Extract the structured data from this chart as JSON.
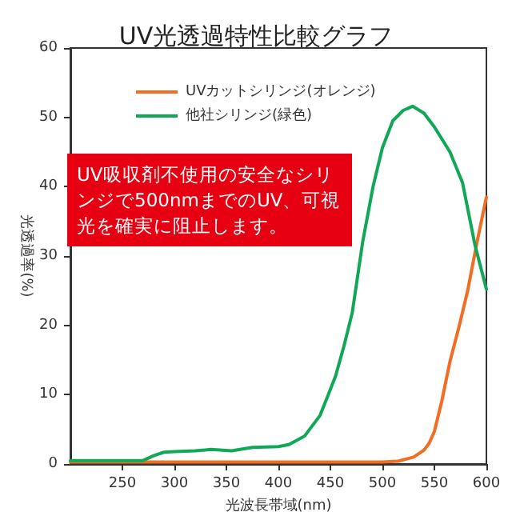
{
  "chart_data": {
    "type": "line",
    "title": "UV光透過特性比較グラフ",
    "xlabel": "光波長帯域(nm)",
    "ylabel": "光透過率(%)",
    "annotations": [
      "UV吸収剤不使用の安全なシリンジで500nmまでのUV、可視光を確実に阻止します。"
    ],
    "xlim": [
      200,
      600
    ],
    "xticks": [
      250,
      300,
      350,
      400,
      450,
      500,
      550,
      600
    ],
    "ylim": [
      0,
      60
    ],
    "yticks": [
      0,
      10,
      20,
      30,
      40,
      50,
      60
    ],
    "grid": false,
    "legend": "top left",
    "marker": "none",
    "line_style": "solid",
    "series": [
      {
        "name": "UVカットシリンジ(オレンジ)",
        "color": "#f26c21",
        "x": [
          200,
          300,
          400,
          500,
          515,
          530,
          540,
          545,
          550,
          557,
          565,
          574,
          582,
          591,
          600
        ],
        "values": [
          0.3,
          0.3,
          0.3,
          0.3,
          0.4,
          1,
          2,
          3,
          4.7,
          9,
          14.8,
          20,
          25,
          32,
          38.5
        ]
      },
      {
        "name": "他社シリンジ(緑色)",
        "color": "#10a856",
        "x": [
          200,
          250,
          270,
          280,
          290,
          300,
          320,
          335,
          355,
          375,
          400,
          410,
          425,
          440,
          448,
          455,
          463,
          471,
          481,
          491,
          500,
          510,
          520,
          529,
          540,
          550,
          565,
          577,
          589,
          600
        ],
        "values": [
          0.5,
          0.5,
          0.5,
          1.2,
          1.7,
          1.8,
          1.9,
          2.1,
          1.9,
          2.4,
          2.5,
          2.8,
          4,
          7,
          10,
          12.7,
          17,
          21.8,
          32,
          40,
          45.6,
          49.5,
          51,
          51.6,
          50.6,
          48.6,
          45,
          40.6,
          31.6,
          25.2
        ]
      }
    ]
  }
}
